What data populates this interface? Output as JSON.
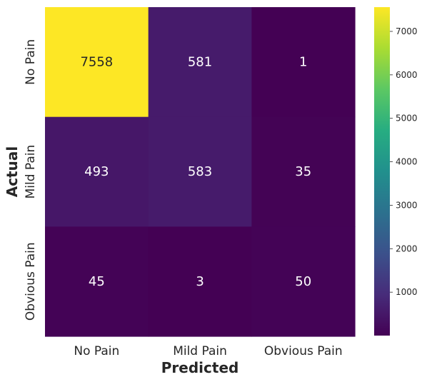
{
  "chart_data": {
    "type": "heatmap",
    "title": "",
    "xlabel": "Predicted",
    "ylabel": "Actual",
    "x_categories": [
      "No Pain",
      "Mild Pain",
      "Obvious Pain"
    ],
    "y_categories": [
      "No Pain",
      "Mild Pain",
      "Obvious Pain"
    ],
    "values": [
      [
        7558,
        581,
        1
      ],
      [
        493,
        583,
        35
      ],
      [
        45,
        3,
        50
      ]
    ],
    "colormap": "viridis",
    "colorbar": {
      "range": [
        1,
        7558
      ],
      "ticks": [
        "1000",
        "2000",
        "3000",
        "4000",
        "5000",
        "6000",
        "7000"
      ],
      "position": "right"
    },
    "grid": false,
    "annotation_colors": {
      "dark_cell": "#ffffff",
      "light_cell": "#262626"
    }
  }
}
